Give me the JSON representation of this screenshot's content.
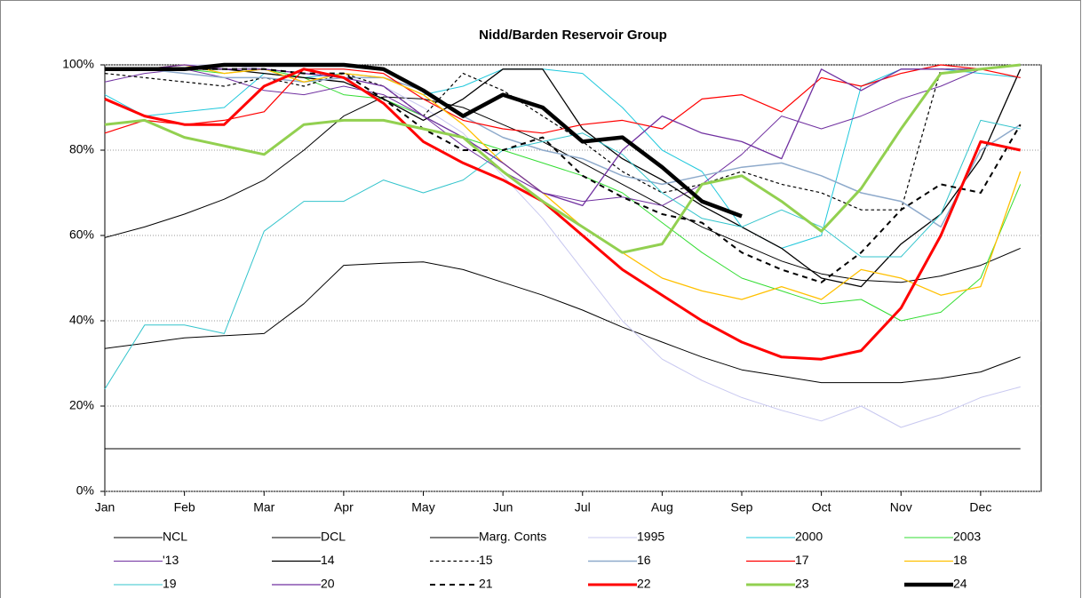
{
  "chart_data": {
    "type": "line",
    "title": "Nidd/Barden Reservoir Group",
    "x": [
      0,
      0.5,
      1,
      1.5,
      2,
      2.5,
      3,
      3.5,
      4,
      4.5,
      5,
      5.5,
      6,
      6.5,
      7,
      7.5,
      8,
      8.5,
      9,
      9.5,
      10,
      10.5,
      11,
      11.5
    ],
    "xlim": [
      0,
      11.76
    ],
    "xticks": [
      {
        "value": 0,
        "label": "Jan"
      },
      {
        "value": 1,
        "label": "Feb"
      },
      {
        "value": 2,
        "label": "Mar"
      },
      {
        "value": 3,
        "label": "Apr"
      },
      {
        "value": 4,
        "label": "May"
      },
      {
        "value": 5,
        "label": "Jun"
      },
      {
        "value": 6,
        "label": "Jul"
      },
      {
        "value": 7,
        "label": "Aug"
      },
      {
        "value": 8,
        "label": "Sep"
      },
      {
        "value": 9,
        "label": "Oct"
      },
      {
        "value": 10,
        "label": "Nov"
      },
      {
        "value": 11,
        "label": "Dec"
      }
    ],
    "ylim": [
      0,
      100
    ],
    "yticks": [
      {
        "value": 0,
        "label": "0%"
      },
      {
        "value": 20,
        "label": "20%"
      },
      {
        "value": 40,
        "label": "40%"
      },
      {
        "value": 60,
        "label": "60%"
      },
      {
        "value": 80,
        "label": "80%"
      },
      {
        "value": 100,
        "label": "100%"
      }
    ],
    "grid": true,
    "series": [
      {
        "name": "NCL",
        "color": "#000000",
        "width": 1,
        "dash": false,
        "values": [
          59.5,
          62,
          65,
          68.5,
          73,
          80,
          88,
          92.5,
          92,
          90,
          86,
          82,
          77,
          72,
          67,
          62,
          58,
          54,
          51,
          49.5,
          49,
          50.5,
          53,
          57
        ]
      },
      {
        "name": "DCL",
        "color": "#000000",
        "width": 1,
        "dash": false,
        "values": [
          33.5,
          34.7,
          36,
          36.5,
          37,
          44,
          53,
          53.5,
          53.8,
          52,
          49,
          46,
          42.5,
          38.5,
          35,
          31.5,
          28.5,
          27,
          25.5,
          25.5,
          25.5,
          26.5,
          28,
          31.5
        ]
      },
      {
        "name": "Marg. Conts",
        "color": "#000000",
        "width": 1,
        "dash": false,
        "values": [
          10,
          10,
          10,
          10,
          10,
          10,
          10,
          10,
          10,
          10,
          10,
          10,
          10,
          10,
          10,
          10,
          10,
          10,
          10,
          10,
          10,
          10,
          10,
          10
        ]
      },
      {
        "name": "1995",
        "color": "#c8c8f0",
        "width": 1,
        "dash": false,
        "values": [
          99,
          99,
          100,
          100,
          99,
          98,
          97,
          95,
          90,
          84,
          74,
          64,
          52,
          40,
          31,
          26,
          22,
          19,
          16.5,
          20,
          15,
          18,
          22,
          24.5
        ]
      },
      {
        "name": "2000",
        "color": "#1fc8dc",
        "width": 1,
        "dash": false,
        "values": [
          93,
          88,
          89,
          90,
          98,
          97,
          98,
          97,
          93,
          95,
          99,
          99,
          98,
          90,
          80,
          75,
          62,
          57,
          60,
          95,
          99,
          99,
          98,
          97
        ]
      },
      {
        "name": "2003",
        "color": "#33dd33",
        "width": 1,
        "dash": false,
        "values": [
          99,
          99,
          99,
          98,
          99,
          97,
          93,
          92,
          88,
          83,
          80,
          77,
          74,
          70,
          63,
          56,
          50,
          47,
          44,
          45,
          40,
          42,
          50,
          72
        ]
      },
      {
        "name": "'13",
        "color": "#7030a0",
        "width": 1,
        "dash": false,
        "values": [
          96,
          98,
          99,
          97,
          94,
          93,
          95,
          93,
          88,
          81,
          75,
          70,
          68,
          69,
          67,
          72,
          79,
          88,
          85,
          88,
          92,
          95,
          99,
          100
        ]
      },
      {
        "name": "14",
        "color": "#000000",
        "width": 1.3,
        "dash": false,
        "values": [
          99,
          99,
          99,
          99,
          98,
          97,
          96,
          92,
          87,
          92,
          99,
          99,
          85,
          78,
          73,
          67,
          62,
          57,
          50,
          48,
          58,
          65,
          78,
          99
        ]
      },
      {
        "name": "15",
        "color": "#000000",
        "width": 1.2,
        "dash": true,
        "values": [
          98,
          97,
          96,
          95,
          97,
          95,
          98,
          95,
          88,
          98,
          94,
          88,
          82,
          75,
          70,
          72,
          75,
          72,
          70,
          66,
          66,
          99,
          99,
          100
        ]
      },
      {
        "name": "16",
        "color": "#8eaacb",
        "width": 1.5,
        "dash": false,
        "values": [
          99,
          99,
          98,
          97,
          97,
          96,
          97,
          97,
          94,
          88,
          83,
          80,
          78,
          74,
          72,
          74,
          76,
          77,
          74,
          70,
          68,
          62,
          80,
          86
        ]
      },
      {
        "name": "17",
        "color": "#ff0000",
        "width": 1.2,
        "dash": false,
        "values": [
          84,
          87,
          86,
          87,
          89,
          99,
          99,
          98,
          92,
          87,
          85,
          84,
          86,
          87,
          85,
          92,
          93,
          89,
          97,
          95,
          98,
          100,
          99,
          97
        ]
      },
      {
        "name": "18",
        "color": "#ffc000",
        "width": 1.3,
        "dash": false,
        "values": [
          99,
          99,
          100,
          98,
          99,
          96,
          98,
          97,
          93,
          86,
          77,
          70,
          62,
          56,
          50,
          47,
          45,
          48,
          45,
          52,
          50,
          46,
          48,
          75
        ]
      },
      {
        "name": "19",
        "color": "#33c4cc",
        "width": 1,
        "dash": false,
        "values": [
          24,
          39,
          39,
          37,
          61,
          68,
          68,
          73,
          70,
          73,
          80,
          82,
          84,
          79,
          70,
          64,
          62,
          66,
          62,
          55,
          55,
          65,
          87,
          85
        ]
      },
      {
        "name": "20",
        "color": "#7030a0",
        "width": 1.3,
        "dash": false,
        "values": [
          99,
          99,
          100,
          99,
          99,
          98,
          97,
          95,
          88,
          83,
          77,
          70,
          67,
          80,
          88,
          84,
          82,
          78,
          99,
          94,
          99,
          99,
          99,
          100
        ]
      },
      {
        "name": "21",
        "color": "#000000",
        "width": 2,
        "dash": true,
        "values": [
          99,
          99,
          99,
          99,
          99,
          98,
          98,
          92,
          85,
          80,
          80,
          83,
          74,
          69,
          65,
          63,
          56,
          52,
          49,
          56,
          66,
          72,
          70,
          86
        ]
      },
      {
        "name": "22",
        "color": "#ff0000",
        "width": 3,
        "dash": false,
        "values": [
          92,
          88,
          86,
          86,
          95,
          99,
          97,
          91,
          82,
          77,
          73,
          68,
          60,
          52,
          46,
          40,
          35,
          31.5,
          31,
          33,
          43,
          60,
          82,
          80
        ]
      },
      {
        "name": "23",
        "color": "#92d050",
        "width": 3,
        "dash": false,
        "values": [
          86,
          87,
          83,
          81,
          79,
          86,
          87,
          87,
          85,
          83,
          75,
          68,
          62,
          56,
          58,
          72,
          74,
          68,
          61,
          71,
          85,
          98,
          99,
          100
        ]
      },
      {
        "name": "24",
        "color": "#000000",
        "width": 4.5,
        "dash": false,
        "values": [
          99,
          99,
          99,
          100,
          100,
          100,
          100,
          99,
          94,
          88,
          93,
          90,
          82,
          83,
          76,
          68,
          64.5,
          null,
          null,
          null,
          null,
          null,
          null,
          null
        ]
      }
    ]
  }
}
